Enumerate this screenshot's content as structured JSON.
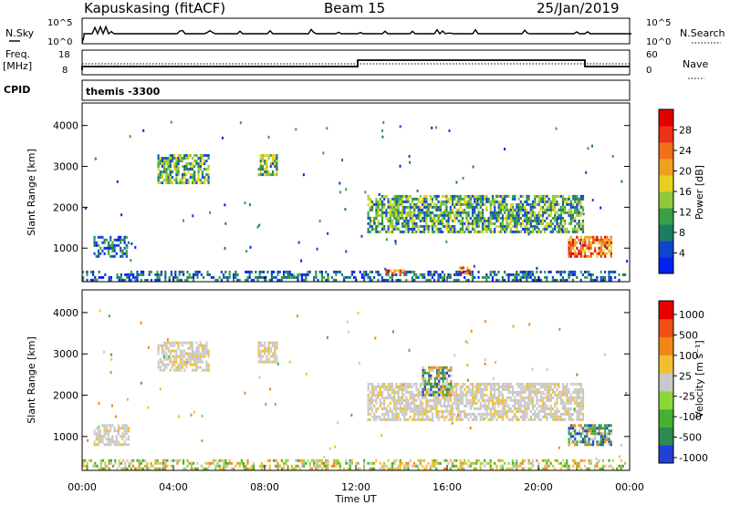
{
  "header": {
    "station": "Kapuskasing (fitACF)",
    "beam": "Beam 15",
    "date": "25/Jan/2019"
  },
  "strip": {
    "nsky_label": "N.Sky",
    "nsky_ticks": [
      "10^5",
      "10^0"
    ],
    "nsearch_label": "N.Search",
    "nsearch_ticks": [
      "10^5",
      "10^0"
    ],
    "freq_label": "Freq.",
    "freq_unit": "[MHz]",
    "freq_ticks": [
      "18",
      "8"
    ],
    "nave_label": "Nave",
    "nave_ticks": [
      "60",
      "0"
    ],
    "cpid_label": "CPID",
    "cpid_value": "themis -3300"
  },
  "chart_data": [
    {
      "type": "heatmap",
      "panel": "power",
      "ylabel": "Slant Range [km]",
      "xlabel": "",
      "ylim": [
        180,
        4550
      ],
      "yticks": [
        1000,
        2000,
        3000,
        4000
      ],
      "xlim": [
        0,
        24
      ],
      "colorbar": {
        "label": "Power [dB]",
        "ticks": [
          "4",
          "8",
          "12",
          "16",
          "20",
          "24",
          "28"
        ],
        "colors": [
          "#0022ee",
          "#1144cc",
          "#1a7e62",
          "#3aa048",
          "#90c838",
          "#e8d020",
          "#f0a020",
          "#f07018",
          "#ee3018",
          "#e00000"
        ]
      },
      "echo_regions": [
        {
          "t_start": 0.0,
          "t_end": 23.8,
          "r_low": 200,
          "r_high": 450,
          "level": "low"
        },
        {
          "t_start": 13.3,
          "t_end": 14.2,
          "r_low": 350,
          "r_high": 480,
          "level": "high"
        },
        {
          "t_start": 16.5,
          "t_end": 17.0,
          "r_low": 400,
          "r_high": 550,
          "level": "high"
        },
        {
          "t_start": 3.3,
          "t_end": 5.5,
          "r_low": 2600,
          "r_high": 3300,
          "level": "medium"
        },
        {
          "t_start": 7.7,
          "t_end": 8.5,
          "r_low": 2800,
          "r_high": 3300,
          "level": "medium"
        },
        {
          "t_start": 12.5,
          "t_end": 22.0,
          "r_low": 1400,
          "r_high": 2300,
          "level": "medium"
        },
        {
          "t_start": 21.3,
          "t_end": 23.2,
          "r_low": 800,
          "r_high": 1300,
          "level": "high"
        },
        {
          "t_start": 0.5,
          "t_end": 2.0,
          "r_low": 800,
          "r_high": 1300,
          "level": "low"
        }
      ]
    },
    {
      "type": "heatmap",
      "panel": "velocity",
      "ylabel": "Slant Range [km]",
      "xlabel": "Time UT",
      "ylim": [
        180,
        4550
      ],
      "yticks": [
        1000,
        2000,
        3000,
        4000
      ],
      "xlim": [
        0,
        24
      ],
      "xticks": [
        "00:00",
        "04:00",
        "08:00",
        "12:00",
        "16:00",
        "20:00",
        "00:00"
      ],
      "colorbar": {
        "label": "Velocity [m s⁻¹]",
        "ticks": [
          "1000",
          "500",
          "100",
          "25",
          "-25",
          "-100",
          "-500",
          "-1000"
        ],
        "colors": [
          "#2040d8",
          "#2c8c50",
          "#48b030",
          "#8cd838",
          "#c8c8c8",
          "#f0c030",
          "#f08818",
          "#f05018",
          "#e80000"
        ]
      },
      "echo_regions": [
        {
          "t_start": 0.0,
          "t_end": 23.8,
          "r_low": 200,
          "r_high": 450,
          "level": "low"
        },
        {
          "t_start": 3.3,
          "t_end": 5.5,
          "r_low": 2600,
          "r_high": 3300,
          "level": "zero"
        },
        {
          "t_start": 7.7,
          "t_end": 8.5,
          "r_low": 2800,
          "r_high": 3300,
          "level": "zero"
        },
        {
          "t_start": 12.5,
          "t_end": 22.0,
          "r_low": 1400,
          "r_high": 2300,
          "level": "zero"
        },
        {
          "t_start": 14.9,
          "t_end": 16.2,
          "r_low": 2000,
          "r_high": 2700,
          "level": "toward"
        },
        {
          "t_start": 21.3,
          "t_end": 23.2,
          "r_low": 800,
          "r_high": 1300,
          "level": "toward"
        },
        {
          "t_start": 0.5,
          "t_end": 2.0,
          "r_low": 800,
          "r_high": 1300,
          "level": "zero"
        }
      ]
    }
  ]
}
